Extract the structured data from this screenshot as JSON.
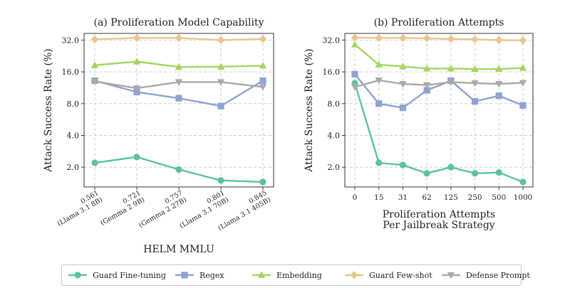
{
  "chart_data": [
    {
      "type": "line",
      "title": "(a) Proliferation Model Capability",
      "xlabel": "HELM MMLU",
      "ylabel": "Attack Success Rate (%)",
      "yscale": "log2",
      "yticks": [
        "2.0",
        "4.0",
        "8.0",
        "16.0",
        "32.0"
      ],
      "categories": [
        {
          "score": "0.561",
          "model": "(Llama 3.1 8B)"
        },
        {
          "score": "0.721",
          "model": "(Gemma 2 9B)"
        },
        {
          "score": "0.757",
          "model": "(Gemma 2 27B)"
        },
        {
          "score": "0.801",
          "model": "(Llama 3.1 70B)"
        },
        {
          "score": "0.845",
          "model": "(Llama 3.1 405B)"
        }
      ],
      "grid": true,
      "series": [
        {
          "key": "guard_finetuning",
          "values": [
            2.2,
            2.5,
            1.9,
            1.5,
            1.45
          ]
        },
        {
          "key": "regex",
          "values": [
            13.2,
            10.3,
            9.0,
            7.6,
            13.2
          ]
        },
        {
          "key": "embedding",
          "values": [
            18.5,
            20.0,
            17.8,
            17.9,
            18.3
          ]
        },
        {
          "key": "guard_fewshot",
          "values": [
            32.5,
            33.5,
            33.5,
            32.0,
            32.8
          ]
        },
        {
          "key": "defense_prompt",
          "values": [
            13.0,
            11.2,
            12.8,
            12.8,
            11.5
          ]
        }
      ]
    },
    {
      "type": "line",
      "title": "(b) Proliferation Attempts",
      "xlabel": [
        "Proliferation Attempts",
        "Per Jailbreak Strategy"
      ],
      "ylabel": "Attack Success Rate (%)",
      "yscale": "log2",
      "yticks": [
        "2.0",
        "4.0",
        "8.0",
        "16.0",
        "32.0"
      ],
      "categories": [
        "0",
        "15",
        "31",
        "62",
        "125",
        "250",
        "500",
        "1000"
      ],
      "grid": true,
      "series": [
        {
          "key": "guard_finetuning",
          "values": [
            12.5,
            2.2,
            2.1,
            1.75,
            2.0,
            1.75,
            1.78,
            1.45
          ]
        },
        {
          "key": "regex",
          "values": [
            15.2,
            8.0,
            7.3,
            10.7,
            13.2,
            8.4,
            9.5,
            7.7
          ]
        },
        {
          "key": "embedding",
          "values": [
            29.0,
            18.7,
            18.0,
            17.2,
            17.2,
            17.0,
            17.0,
            17.4
          ]
        },
        {
          "key": "guard_fewshot",
          "values": [
            33.8,
            33.5,
            33.5,
            33.2,
            32.8,
            32.5,
            32.0,
            31.8
          ]
        },
        {
          "key": "defense_prompt",
          "values": [
            11.5,
            13.3,
            12.3,
            12.0,
            12.8,
            12.5,
            12.3,
            12.6
          ]
        }
      ]
    }
  ],
  "legend": [
    {
      "key": "guard_finetuning",
      "label": "Guard Fine-tuning",
      "color": "#5cc29e",
      "marker": "circle"
    },
    {
      "key": "regex",
      "label": "Regex",
      "color": "#8ea3d0",
      "marker": "square"
    },
    {
      "key": "embedding",
      "label": "Embedding",
      "color": "#a4d65e",
      "marker": "triangle-up"
    },
    {
      "key": "guard_fewshot",
      "label": "Guard Few-shot",
      "color": "#e8c58e",
      "marker": "diamond"
    },
    {
      "key": "defense_prompt",
      "label": "Defense Prompt",
      "color": "#aaaaaa",
      "marker": "triangle-down"
    }
  ]
}
